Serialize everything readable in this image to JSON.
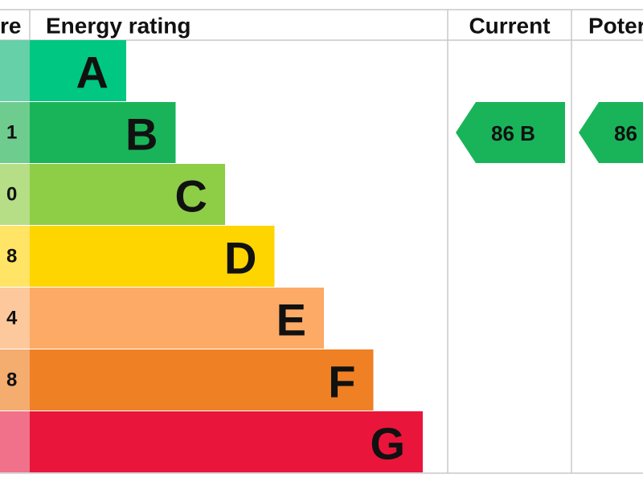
{
  "header": {
    "score": "re",
    "rating": "Energy rating",
    "current": "Current",
    "potential": "Poter"
  },
  "bands": [
    {
      "letter": "A",
      "color": "#00c781",
      "score_color": "#66d0a9"
    },
    {
      "letter": "B",
      "score": "1",
      "color": "#19b459",
      "score_color": "#6fcc8f"
    },
    {
      "letter": "C",
      "score": "0",
      "color": "#8dce46",
      "score_color": "#b5de86"
    },
    {
      "letter": "D",
      "score": "8",
      "color": "#ffd500",
      "score_color": "#ffe466"
    },
    {
      "letter": "E",
      "score": "4",
      "color": "#fcaa65",
      "score_color": "#fdc89c"
    },
    {
      "letter": "F",
      "score": "8",
      "color": "#ef8023",
      "score_color": "#f4ac6f"
    },
    {
      "letter": "G",
      "color": "#e9153b",
      "score_color": "#f07189"
    }
  ],
  "current": {
    "text": "86  B",
    "color": "#19b459"
  },
  "potential": {
    "text": "86",
    "color": "#19b459"
  }
}
